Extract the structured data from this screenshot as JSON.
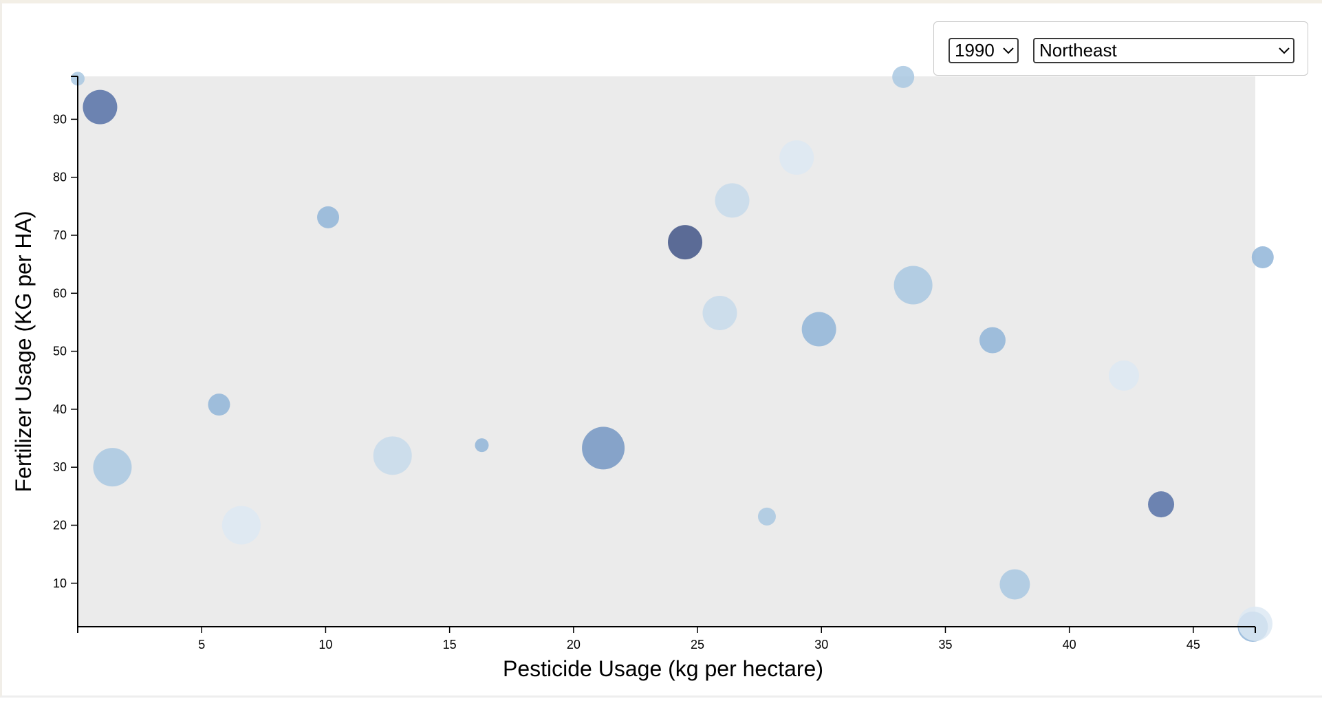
{
  "controls": {
    "year": {
      "selected": "1990"
    },
    "region": {
      "selected": "Northeast"
    }
  },
  "chart_data": {
    "type": "scatter",
    "title": "",
    "xlabel": "Pesticide Usage (kg per hectare)",
    "ylabel": "Fertilizer Usage (KG per HA)",
    "xlim": [
      0,
      47.5
    ],
    "ylim": [
      2.5,
      97.4
    ],
    "xticks": [
      5,
      10,
      15,
      20,
      25,
      30,
      35,
      40,
      45
    ],
    "yticks": [
      10,
      20,
      30,
      40,
      50,
      60,
      70,
      80,
      90
    ],
    "plot_background": "#ebebeb",
    "grid": false,
    "legend": "none",
    "size_encoding": "bubble radius",
    "color_encoding": "sequential blue",
    "palette": [
      "#dce8f3",
      "#c4d9ea",
      "#a6c6e1",
      "#8cb2d7",
      "#6f93c1",
      "#4f6ba3",
      "#3b4e82"
    ],
    "points": [
      {
        "x": 0.0,
        "y": 97.0,
        "size": 1,
        "shade": 3
      },
      {
        "x": 0.9,
        "y": 92.1,
        "size": 6,
        "shade": 6
      },
      {
        "x": 1.4,
        "y": 30.0,
        "size": 7,
        "shade": 3
      },
      {
        "x": 5.7,
        "y": 40.8,
        "size": 3,
        "shade": 4
      },
      {
        "x": 6.6,
        "y": 20.0,
        "size": 7,
        "shade": 1
      },
      {
        "x": 10.1,
        "y": 73.1,
        "size": 3,
        "shade": 4
      },
      {
        "x": 12.7,
        "y": 32.0,
        "size": 7,
        "shade": 2
      },
      {
        "x": 16.3,
        "y": 33.8,
        "size": 1,
        "shade": 4
      },
      {
        "x": 21.2,
        "y": 33.3,
        "size": 8,
        "shade": 5
      },
      {
        "x": 24.5,
        "y": 68.8,
        "size": 6,
        "shade": 7
      },
      {
        "x": 25.9,
        "y": 56.6,
        "size": 6,
        "shade": 2
      },
      {
        "x": 26.4,
        "y": 76.0,
        "size": 6,
        "shade": 2
      },
      {
        "x": 27.8,
        "y": 21.5,
        "size": 2,
        "shade": 3
      },
      {
        "x": 29.0,
        "y": 83.4,
        "size": 6,
        "shade": 1
      },
      {
        "x": 29.9,
        "y": 53.8,
        "size": 6,
        "shade": 4
      },
      {
        "x": 33.3,
        "y": 97.3,
        "size": 3,
        "shade": 3
      },
      {
        "x": 33.7,
        "y": 61.4,
        "size": 7,
        "shade": 3
      },
      {
        "x": 36.9,
        "y": 51.9,
        "size": 4,
        "shade": 4
      },
      {
        "x": 37.8,
        "y": 9.8,
        "size": 5,
        "shade": 3
      },
      {
        "x": 42.2,
        "y": 45.8,
        "size": 5,
        "shade": 1
      },
      {
        "x": 43.7,
        "y": 23.6,
        "size": 4,
        "shade": 6
      },
      {
        "x": 47.4,
        "y": 2.5,
        "size": 5,
        "shade": 4
      },
      {
        "x": 47.5,
        "y": 3.0,
        "size": 6,
        "shade": 1
      },
      {
        "x": 47.8,
        "y": 66.2,
        "size": 3,
        "shade": 4
      }
    ]
  }
}
